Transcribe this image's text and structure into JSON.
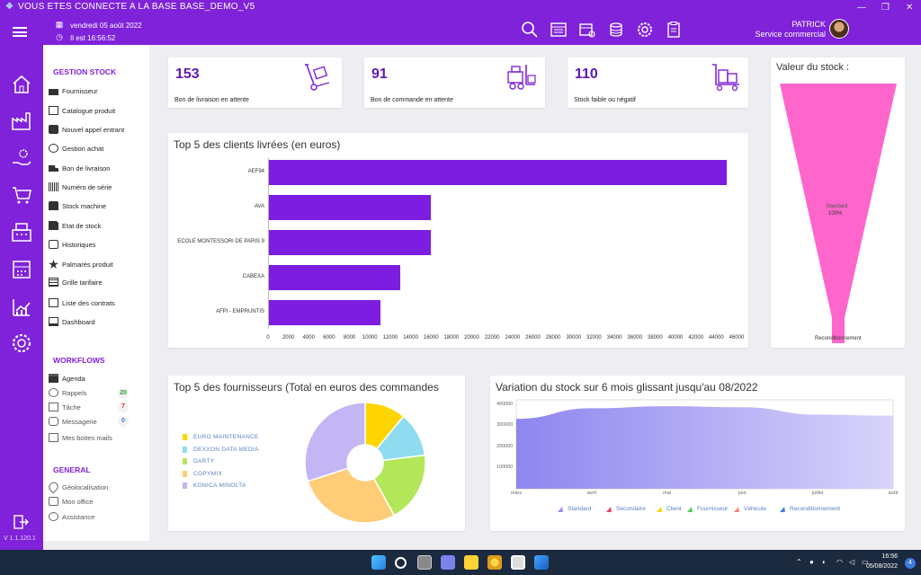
{
  "titlebar": {
    "title": "VOUS ETES CONNECTE A LA BASE BASE_DEMO_V5",
    "controls": [
      "—",
      "❐",
      "✕"
    ]
  },
  "header": {
    "date": "vendredi 05 août 2022",
    "time": "Il est 16:56:52",
    "user_name": "PATRICK",
    "user_role": "Service commercial",
    "tools": [
      "search-icon",
      "catalog-icon",
      "cart-icon",
      "coins-icon",
      "gear-icon",
      "clipboard-icon"
    ]
  },
  "rail": {
    "icons": [
      "home-icon",
      "factory-icon",
      "hand-gear-icon",
      "cart-icon",
      "register-icon",
      "calculator-icon",
      "chart-icon",
      "settings-icon"
    ],
    "version": "V 1.1.120.1"
  },
  "menu": {
    "gestion_title": "GESTION STOCK",
    "gestion_items": [
      "Fournisseur",
      "Catalogue produit",
      "Nouvel appel entrant",
      "Gestion achat",
      "Bon de livraison",
      "Numéro de série",
      "Stock machine",
      "Etat de stock",
      "Historiques",
      "Palmarès produit",
      "Grille tarifaire",
      "Liste des contrats",
      "Dashboard"
    ],
    "workflows_title": "WORKFLOWS",
    "workflow_items": [
      "Agenda",
      "Rappels",
      "Tâche",
      "Messagerie",
      "Mes boites mails"
    ],
    "workflow_badges": {
      "rappels": "20",
      "tache": "7",
      "messagerie": "0"
    },
    "general_title": "GENERAL",
    "general_items": [
      "Géolocalisation",
      "Mon office",
      "Assistance"
    ]
  },
  "kpis": [
    {
      "value": "153",
      "label": "Bon de livraison en attente"
    },
    {
      "value": "91",
      "label": "Bon de commande en attente"
    },
    {
      "value": "110",
      "label": "Stock faible ou négatif"
    }
  ],
  "stock_value": {
    "title": "Valeur du stock :",
    "center_label": "Standard",
    "center_pct": "100%",
    "bottom_label": "Reconditionnement",
    "colors": {
      "fill": "#ff66cc"
    }
  },
  "chart_data": [
    {
      "type": "bar",
      "title": "Top 5 des clients livrées (en euros)",
      "categories": [
        "AEF94",
        "AVA",
        "ECOLE MONTESSORI DE PARIS 9",
        "CABEXA",
        "AFPI - EMPRUNTIS"
      ],
      "values": [
        45000,
        16000,
        16000,
        13000,
        11000
      ],
      "xlim": [
        0,
        46000
      ],
      "ticks": [
        "0",
        "2000",
        "4000",
        "6000",
        "8000",
        "10000",
        "12000",
        "14000",
        "16000",
        "18000",
        "20000",
        "22000",
        "24000",
        "26000",
        "28000",
        "30000",
        "32000",
        "34000",
        "36000",
        "38000",
        "40000",
        "42000",
        "44000",
        "46000"
      ],
      "colors": {
        "bar": "#7c1de0"
      }
    },
    {
      "type": "pie",
      "title": "Top 5 des fournisseurs (Total en euros des commandes",
      "labels": [
        "EURO MAINTENANCE",
        "DEXXON DATA MEDIA",
        "DARTY",
        "COPYMIX",
        "KONICA MINOLTA"
      ],
      "values": [
        11,
        12,
        19,
        28,
        30
      ],
      "colors": [
        "#ffd400",
        "#8fdcf0",
        "#b4e65a",
        "#ffcc77",
        "#c4b5f5"
      ]
    },
    {
      "type": "area",
      "title": "Variation du stock sur 6 mois glissant jusqu'au 08/2022",
      "x": [
        "mars",
        "avril",
        "mai",
        "juin",
        "juillet",
        "août"
      ],
      "series": [
        {
          "name": "Standard",
          "values": [
            330000,
            380000,
            390000,
            385000,
            350000,
            345000
          ]
        }
      ],
      "yticks": [
        "400000",
        "300000",
        "200000",
        "100000"
      ],
      "ylim": [
        0,
        420000
      ],
      "legend": [
        "Standard",
        "Secondaire",
        "Client",
        "Fournisseur",
        "Véhicule",
        "Reconditionnement"
      ],
      "legend_colors": [
        "#9b8cf0",
        "#e04b6b",
        "#ffd400",
        "#4fd060",
        "#ff8080",
        "#3f7fe0"
      ]
    }
  ],
  "taskbar": {
    "time": "16:56",
    "date": "05/08/2022",
    "notif": "4"
  }
}
